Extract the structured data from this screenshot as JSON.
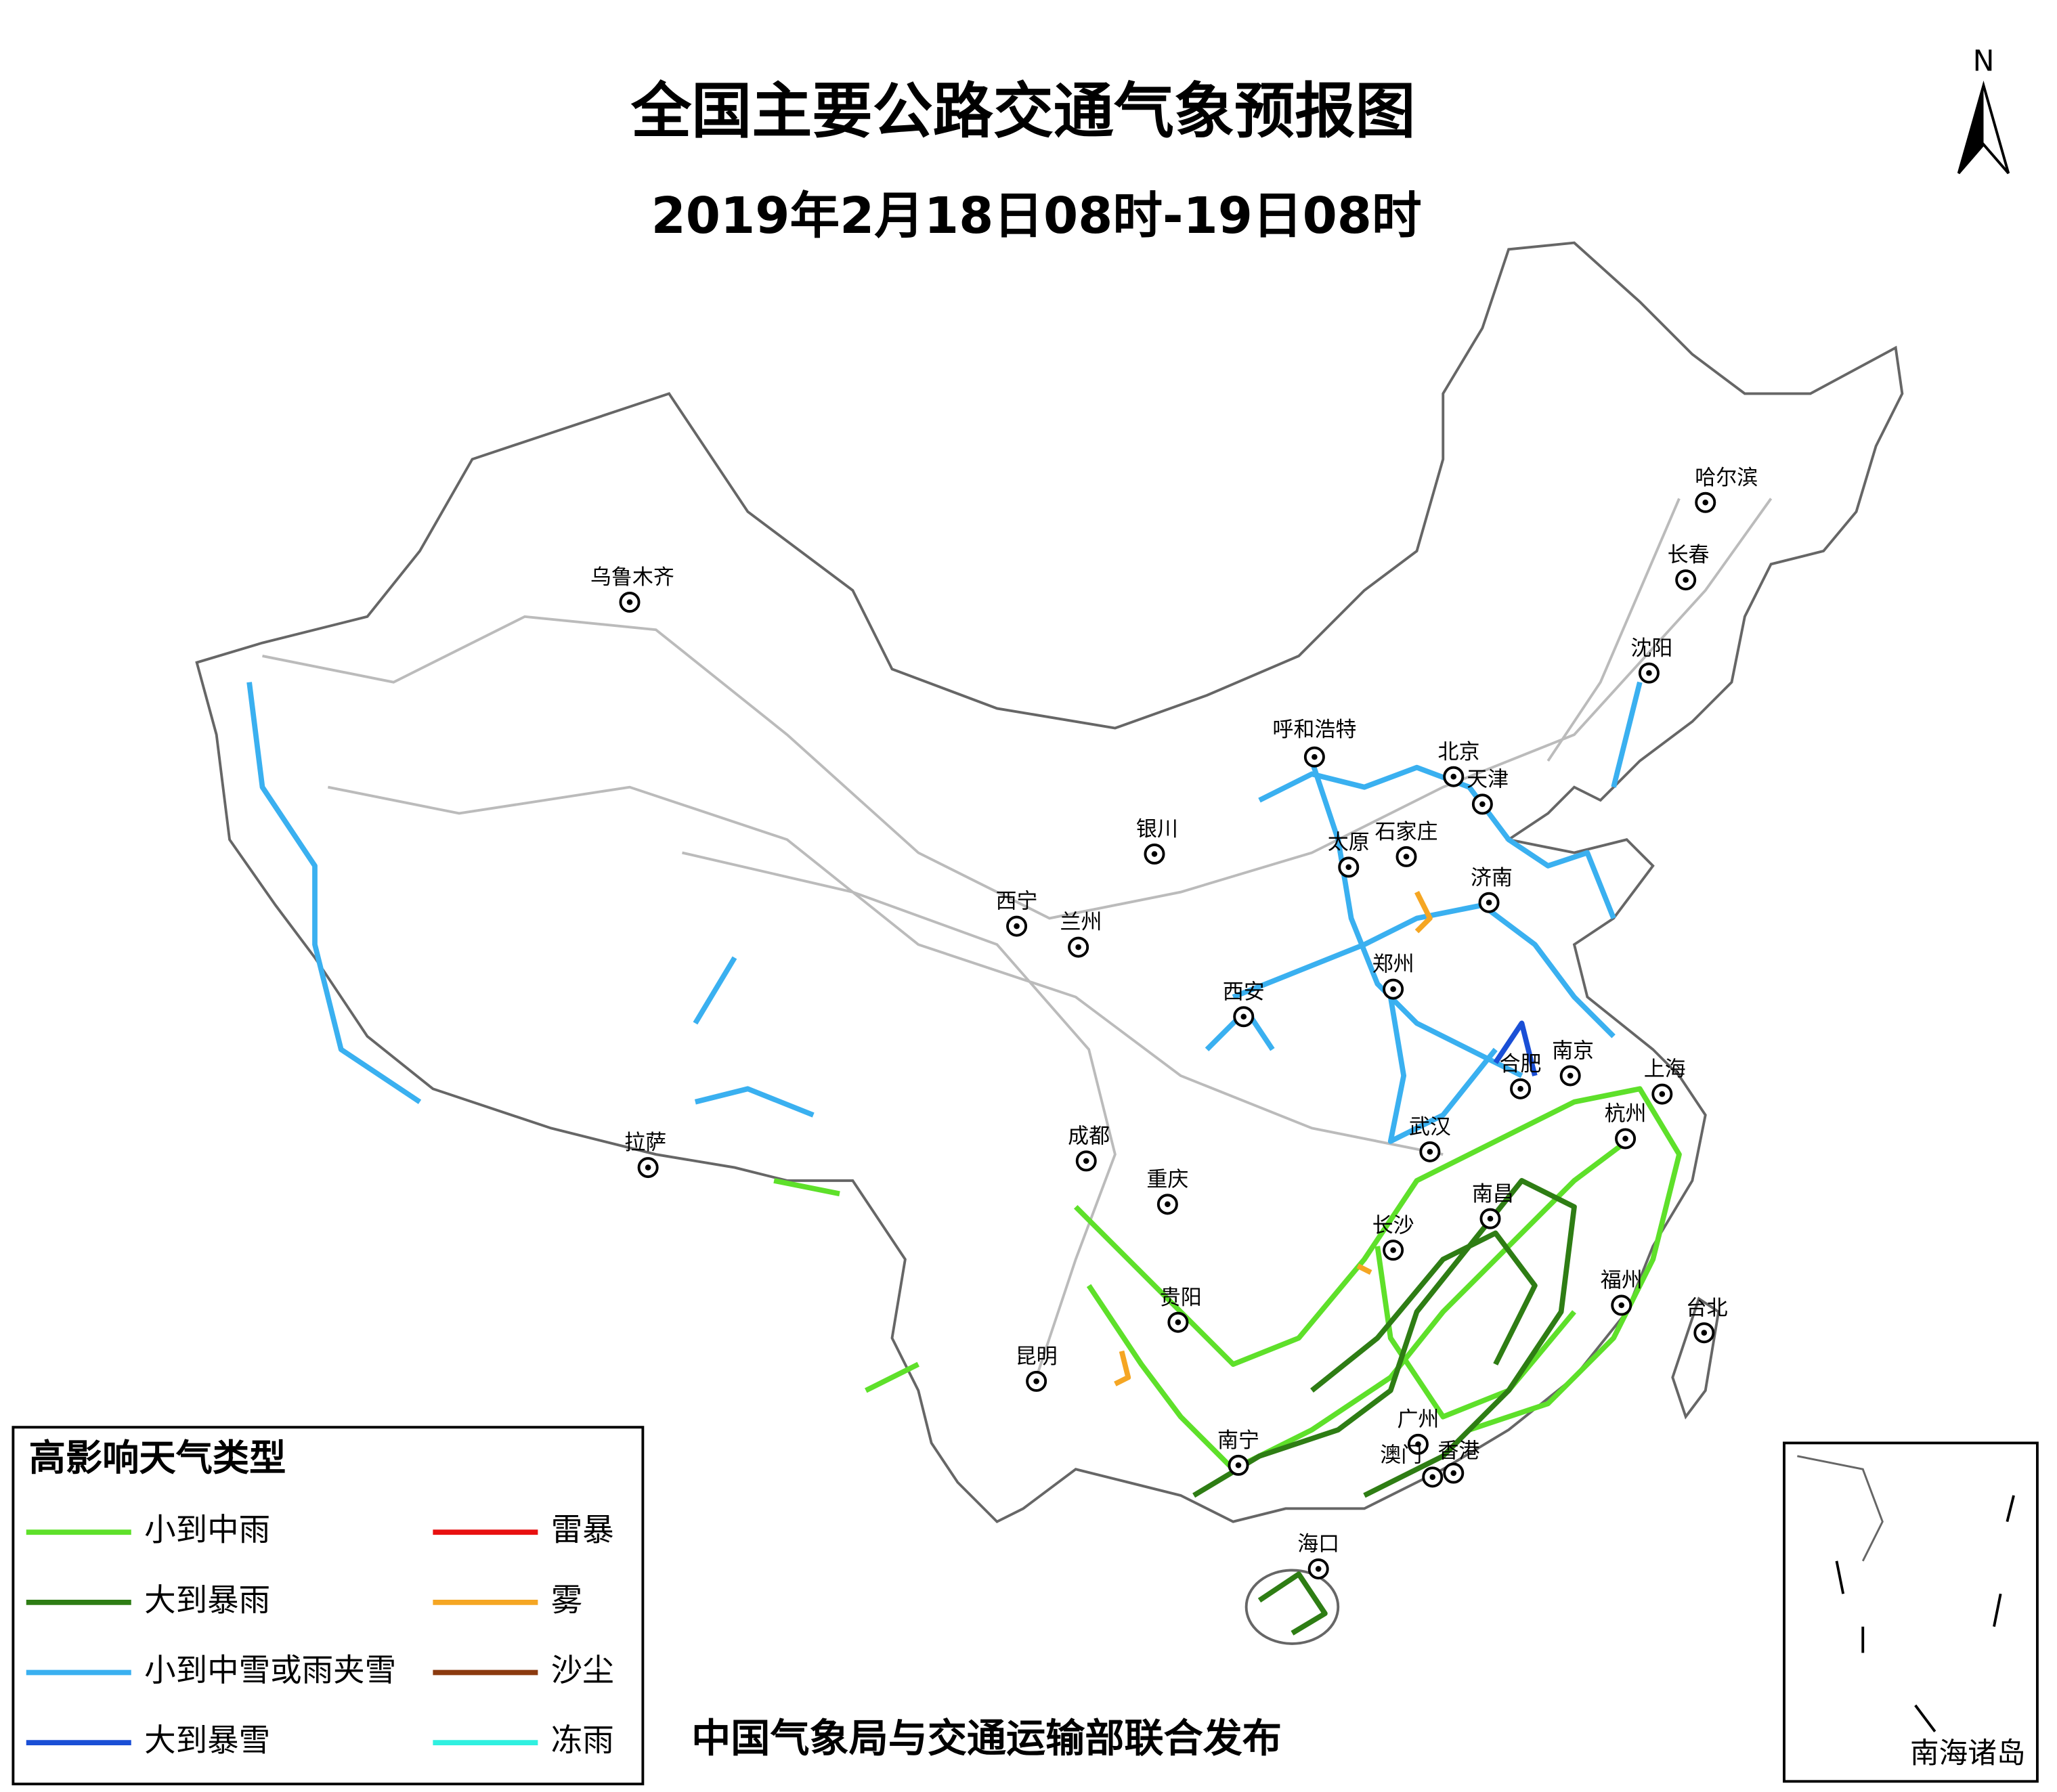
{
  "title": "全国主要公路交通气象预报图",
  "subtitle": "2019年2月18日08时-19日08时",
  "north": "N",
  "cities": [
    "哈尔滨",
    "长春",
    "沈阳",
    "乌鲁木齐",
    "呼和浩特",
    "北京",
    "天津",
    "银川",
    "石家庄",
    "太原",
    "济南",
    "西宁",
    "兰州",
    "郑州",
    "西安",
    "合肥",
    "南京",
    "上海",
    "拉萨",
    "成都",
    "武汉",
    "杭州",
    "重庆",
    "南昌",
    "长沙",
    "福州",
    "贵阳",
    "台北",
    "昆明",
    "广州",
    "南宁",
    "澳门",
    "香港",
    "海口"
  ],
  "legend": {
    "title": "高影响天气类型",
    "items": [
      {
        "label": "小到中雨",
        "color": "#5ee02a"
      },
      {
        "label": "大到暴雨",
        "color": "#2e7d14"
      },
      {
        "label": "小到中雪或雨夹雪",
        "color": "#3ab0f0"
      },
      {
        "label": "大到暴雪",
        "color": "#1a4fd6"
      },
      {
        "label": "雷暴",
        "color": "#e81010"
      },
      {
        "label": "雾",
        "color": "#f5a623"
      },
      {
        "label": "沙尘",
        "color": "#8b3a0f"
      },
      {
        "label": "冻雨",
        "color": "#30f0e0"
      }
    ]
  },
  "publisher": "中国气象局与交通运输部联合发布",
  "inset_label": "南海诸岛"
}
